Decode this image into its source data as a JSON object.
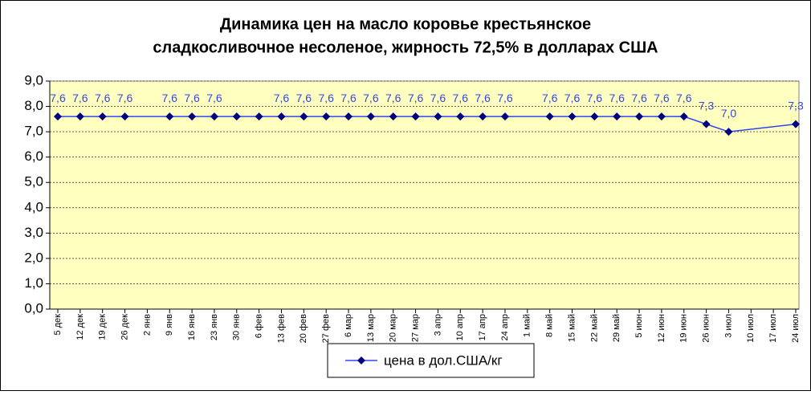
{
  "chart_data": {
    "type": "line",
    "title": [
      "Динамика цен на масло коровье крестьянское",
      "сладкосливочное несоленое, жирность  72,5%  в долларах США"
    ],
    "categories": [
      "5 дек",
      "12 дек",
      "19 дек",
      "26 дек",
      "2 янв",
      "9 янв",
      "16 янв",
      "23 янв",
      "30 янв",
      "6 фев",
      "13 фев",
      "20 фев",
      "27 фев",
      "6 мар",
      "13 мар",
      "20 мар",
      "27 мар",
      "3 апр",
      "10 апр",
      "17 апр",
      "24 апр",
      "1 май",
      "8 май",
      "15 май",
      "22 май",
      "29 май",
      "5 июн",
      "12 июн",
      "19 июн",
      "26 июн",
      "3 июл",
      "10 июл",
      "17 июл",
      "24 июл"
    ],
    "series": [
      {
        "name": "цена в дол.США/кг",
        "color": "#3344ee",
        "marker_color": "#000080",
        "values": [
          7.6,
          7.6,
          7.6,
          7.6,
          null,
          7.6,
          7.6,
          7.6,
          7.6,
          7.6,
          7.6,
          7.6,
          7.6,
          7.6,
          7.6,
          7.6,
          7.6,
          7.6,
          7.6,
          7.6,
          7.6,
          null,
          7.6,
          7.6,
          7.6,
          7.6,
          7.6,
          7.6,
          7.6,
          7.3,
          7.0,
          null,
          null,
          7.3
        ],
        "value_labels": [
          "7,6",
          "7,6",
          "7,6",
          "7,6",
          null,
          "7,6",
          "7,6",
          "7,6",
          null,
          null,
          "7,6",
          "7,6",
          "7,6",
          "7,6",
          "7,6",
          "7,6",
          "7,6",
          "7,6",
          "7,6",
          "7,6",
          "7,6",
          null,
          "7,6",
          "7,6",
          "7,6",
          "7,6",
          "7,6",
          "7,6",
          "7,6",
          "7,3",
          "7,0",
          null,
          null,
          "7,3"
        ]
      }
    ],
    "ylim": [
      0,
      9
    ],
    "yticks": [
      {
        "value": 0,
        "label": "0,0"
      },
      {
        "value": 1,
        "label": "1,0"
      },
      {
        "value": 2,
        "label": "2,0"
      },
      {
        "value": 3,
        "label": "3,0"
      },
      {
        "value": 4,
        "label": "4,0"
      },
      {
        "value": 5,
        "label": "5,0"
      },
      {
        "value": 6,
        "label": "6,0"
      },
      {
        "value": 7,
        "label": "7,0"
      },
      {
        "value": 8,
        "label": "8,0"
      },
      {
        "value": 9,
        "label": "9,0"
      }
    ],
    "grid": true,
    "plot_background": "#ffffc0",
    "legend": "bottom"
  }
}
